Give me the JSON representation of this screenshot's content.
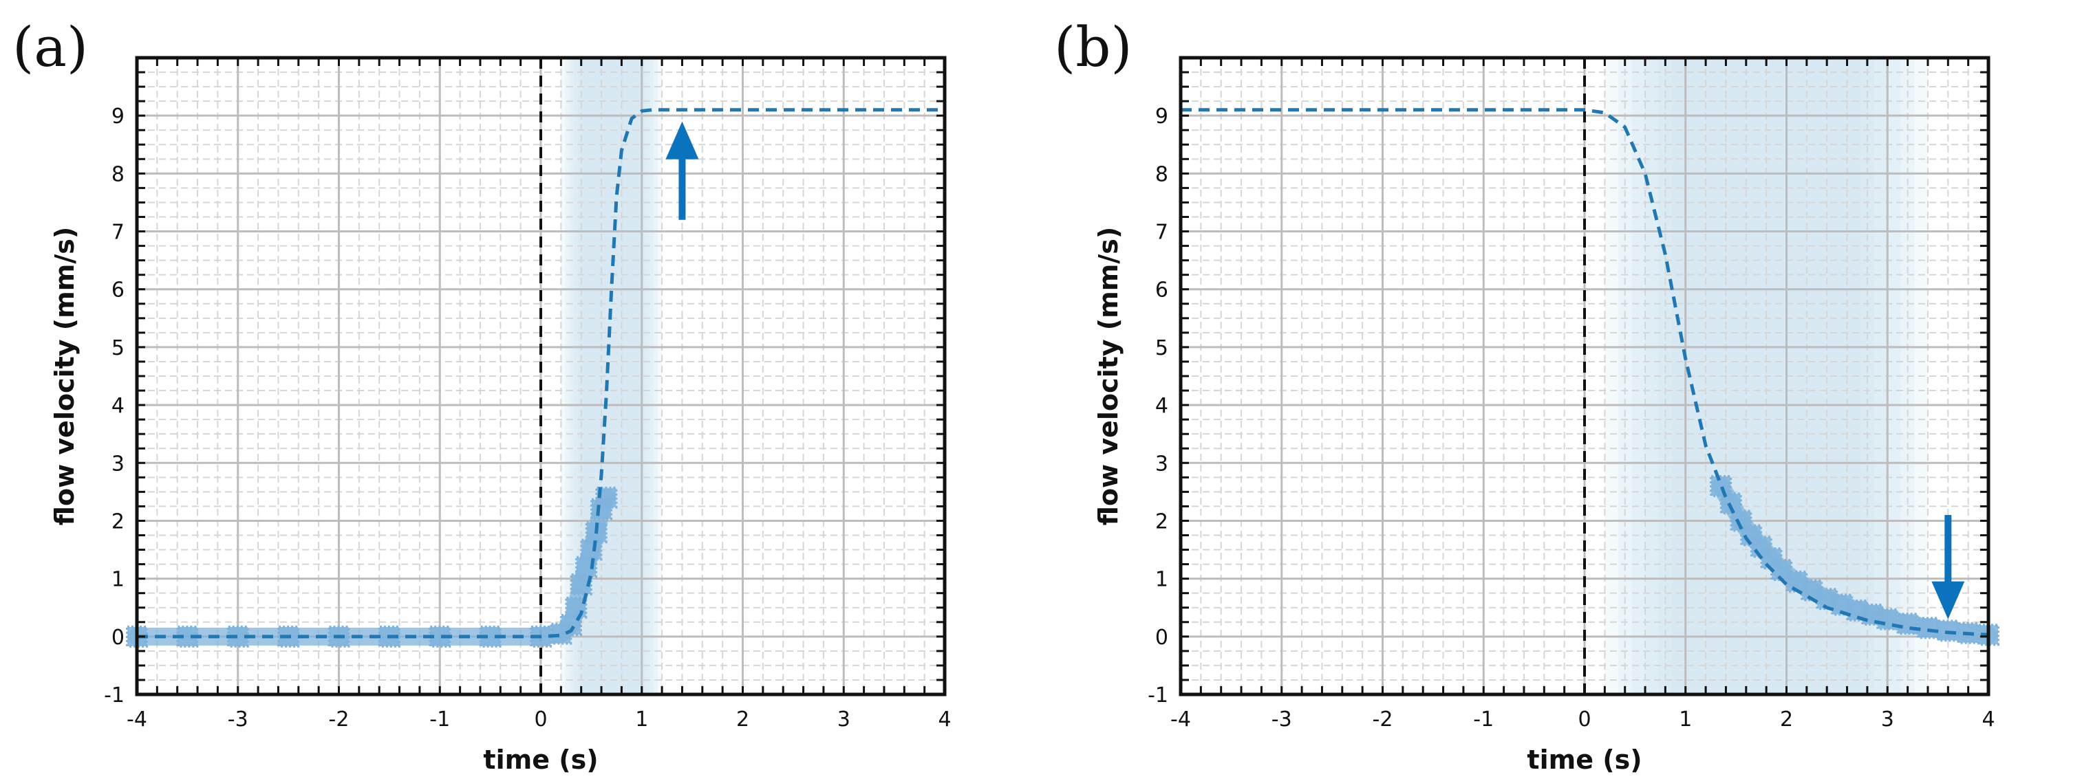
{
  "colors": {
    "series": "#1f77b4",
    "data": "#7fb3dc",
    "band": "#cfe2f1",
    "arrow": "#0b72bd"
  },
  "chart_data": [
    {
      "type": "line",
      "panel_label": "(a)",
      "xlabel": "time (s)",
      "ylabel": "flow velocity (mm/s)",
      "xlim": [
        -4,
        4
      ],
      "ylim": [
        -1,
        10
      ],
      "xticks": [
        -4,
        -3,
        -2,
        -1,
        0,
        1,
        2,
        3,
        4
      ],
      "yticks": [
        -1,
        0,
        1,
        2,
        3,
        4,
        5,
        6,
        7,
        8,
        9
      ],
      "grid": true,
      "vline_x": 0,
      "shaded_band": [
        0.2,
        1.2
      ],
      "arrow": {
        "x": 1.4,
        "y_from": 7.2,
        "y_to": 8.9,
        "direction": "up"
      },
      "series": [
        {
          "style": "dashed",
          "x": [
            -4,
            -2,
            -1,
            0,
            0.2,
            0.3,
            0.4,
            0.5,
            0.55,
            0.6,
            0.65,
            0.7,
            0.75,
            0.8,
            0.9,
            1.0,
            1.1,
            4
          ],
          "y": [
            0,
            0,
            0,
            0,
            0.02,
            0.1,
            0.4,
            1.1,
            1.8,
            2.8,
            4.2,
            6.0,
            7.6,
            8.4,
            8.95,
            9.08,
            9.1,
            9.1
          ]
        },
        {
          "style": "markers",
          "x": [
            -4,
            -3.5,
            -3,
            -2.5,
            -2,
            -1.5,
            -1,
            -0.5,
            0,
            0.2,
            0.3,
            0.35,
            0.4,
            0.45,
            0.5,
            0.55,
            0.6,
            0.65
          ],
          "y": [
            0,
            0,
            0,
            0,
            0,
            0,
            0,
            0,
            0,
            0.05,
            0.2,
            0.5,
            0.9,
            1.2,
            1.5,
            1.8,
            2.2,
            2.4
          ]
        }
      ]
    },
    {
      "type": "line",
      "panel_label": "(b)",
      "xlabel": "time (s)",
      "ylabel": "flow velocity (mm/s)",
      "xlim": [
        -4,
        4
      ],
      "ylim": [
        -1,
        10
      ],
      "xticks": [
        -4,
        -3,
        -2,
        -1,
        0,
        1,
        2,
        3,
        4
      ],
      "yticks": [
        -1,
        0,
        1,
        2,
        3,
        4,
        5,
        6,
        7,
        8,
        9
      ],
      "grid": true,
      "vline_x": 0,
      "shaded_band": [
        0.2,
        3.4
      ],
      "arrow": {
        "x": 3.6,
        "y_from": 2.1,
        "y_to": 0.3,
        "direction": "down"
      },
      "series": [
        {
          "style": "dashed",
          "x": [
            -4,
            -2,
            0,
            0.2,
            0.4,
            0.6,
            0.8,
            1.0,
            1.2,
            1.4,
            1.6,
            1.8,
            2.0,
            2.4,
            2.8,
            3.2,
            3.6,
            4.0
          ],
          "y": [
            9.1,
            9.1,
            9.1,
            9.05,
            8.8,
            8.0,
            6.6,
            4.8,
            3.3,
            2.4,
            1.7,
            1.25,
            0.9,
            0.5,
            0.28,
            0.15,
            0.07,
            0.03
          ]
        },
        {
          "style": "markers",
          "x": [
            1.35,
            1.45,
            1.55,
            1.65,
            1.75,
            1.85,
            1.95,
            2.1,
            2.25,
            2.4,
            2.55,
            2.7,
            2.85,
            3.0,
            3.2,
            3.4,
            3.6,
            3.8,
            4.0
          ],
          "y": [
            2.6,
            2.3,
            2.0,
            1.75,
            1.55,
            1.35,
            1.15,
            0.95,
            0.8,
            0.65,
            0.55,
            0.45,
            0.38,
            0.3,
            0.22,
            0.15,
            0.1,
            0.06,
            0.03
          ]
        }
      ]
    }
  ]
}
